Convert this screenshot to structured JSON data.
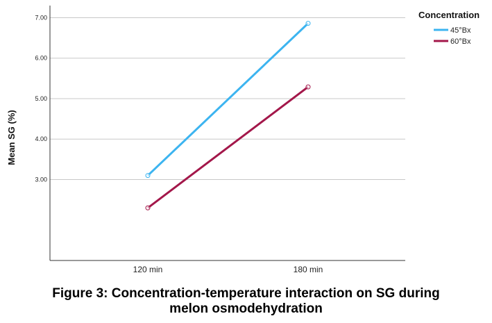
{
  "chart_data": {
    "type": "line",
    "title": "",
    "xlabel": "",
    "ylabel": "Mean SG (%)",
    "categories": [
      "120 min",
      "180 min"
    ],
    "ylim": [
      1.0,
      7.3
    ],
    "yticks": [
      "3.00",
      "4.00",
      "5.00",
      "6.00",
      "7.00"
    ],
    "grid": true,
    "legend_position": "top-right",
    "legend_title": "Concentration",
    "series": [
      {
        "name": "45°Bx",
        "values": [
          3.1,
          6.86
        ],
        "color": "#3cb4f0"
      },
      {
        "name": "60°Bx",
        "values": [
          2.3,
          5.29
        ],
        "color": "#a3174a"
      }
    ]
  },
  "caption": {
    "line1": "Figure 3: Concentration-temperature interaction on SG during",
    "line2": "melon osmodehydration"
  }
}
